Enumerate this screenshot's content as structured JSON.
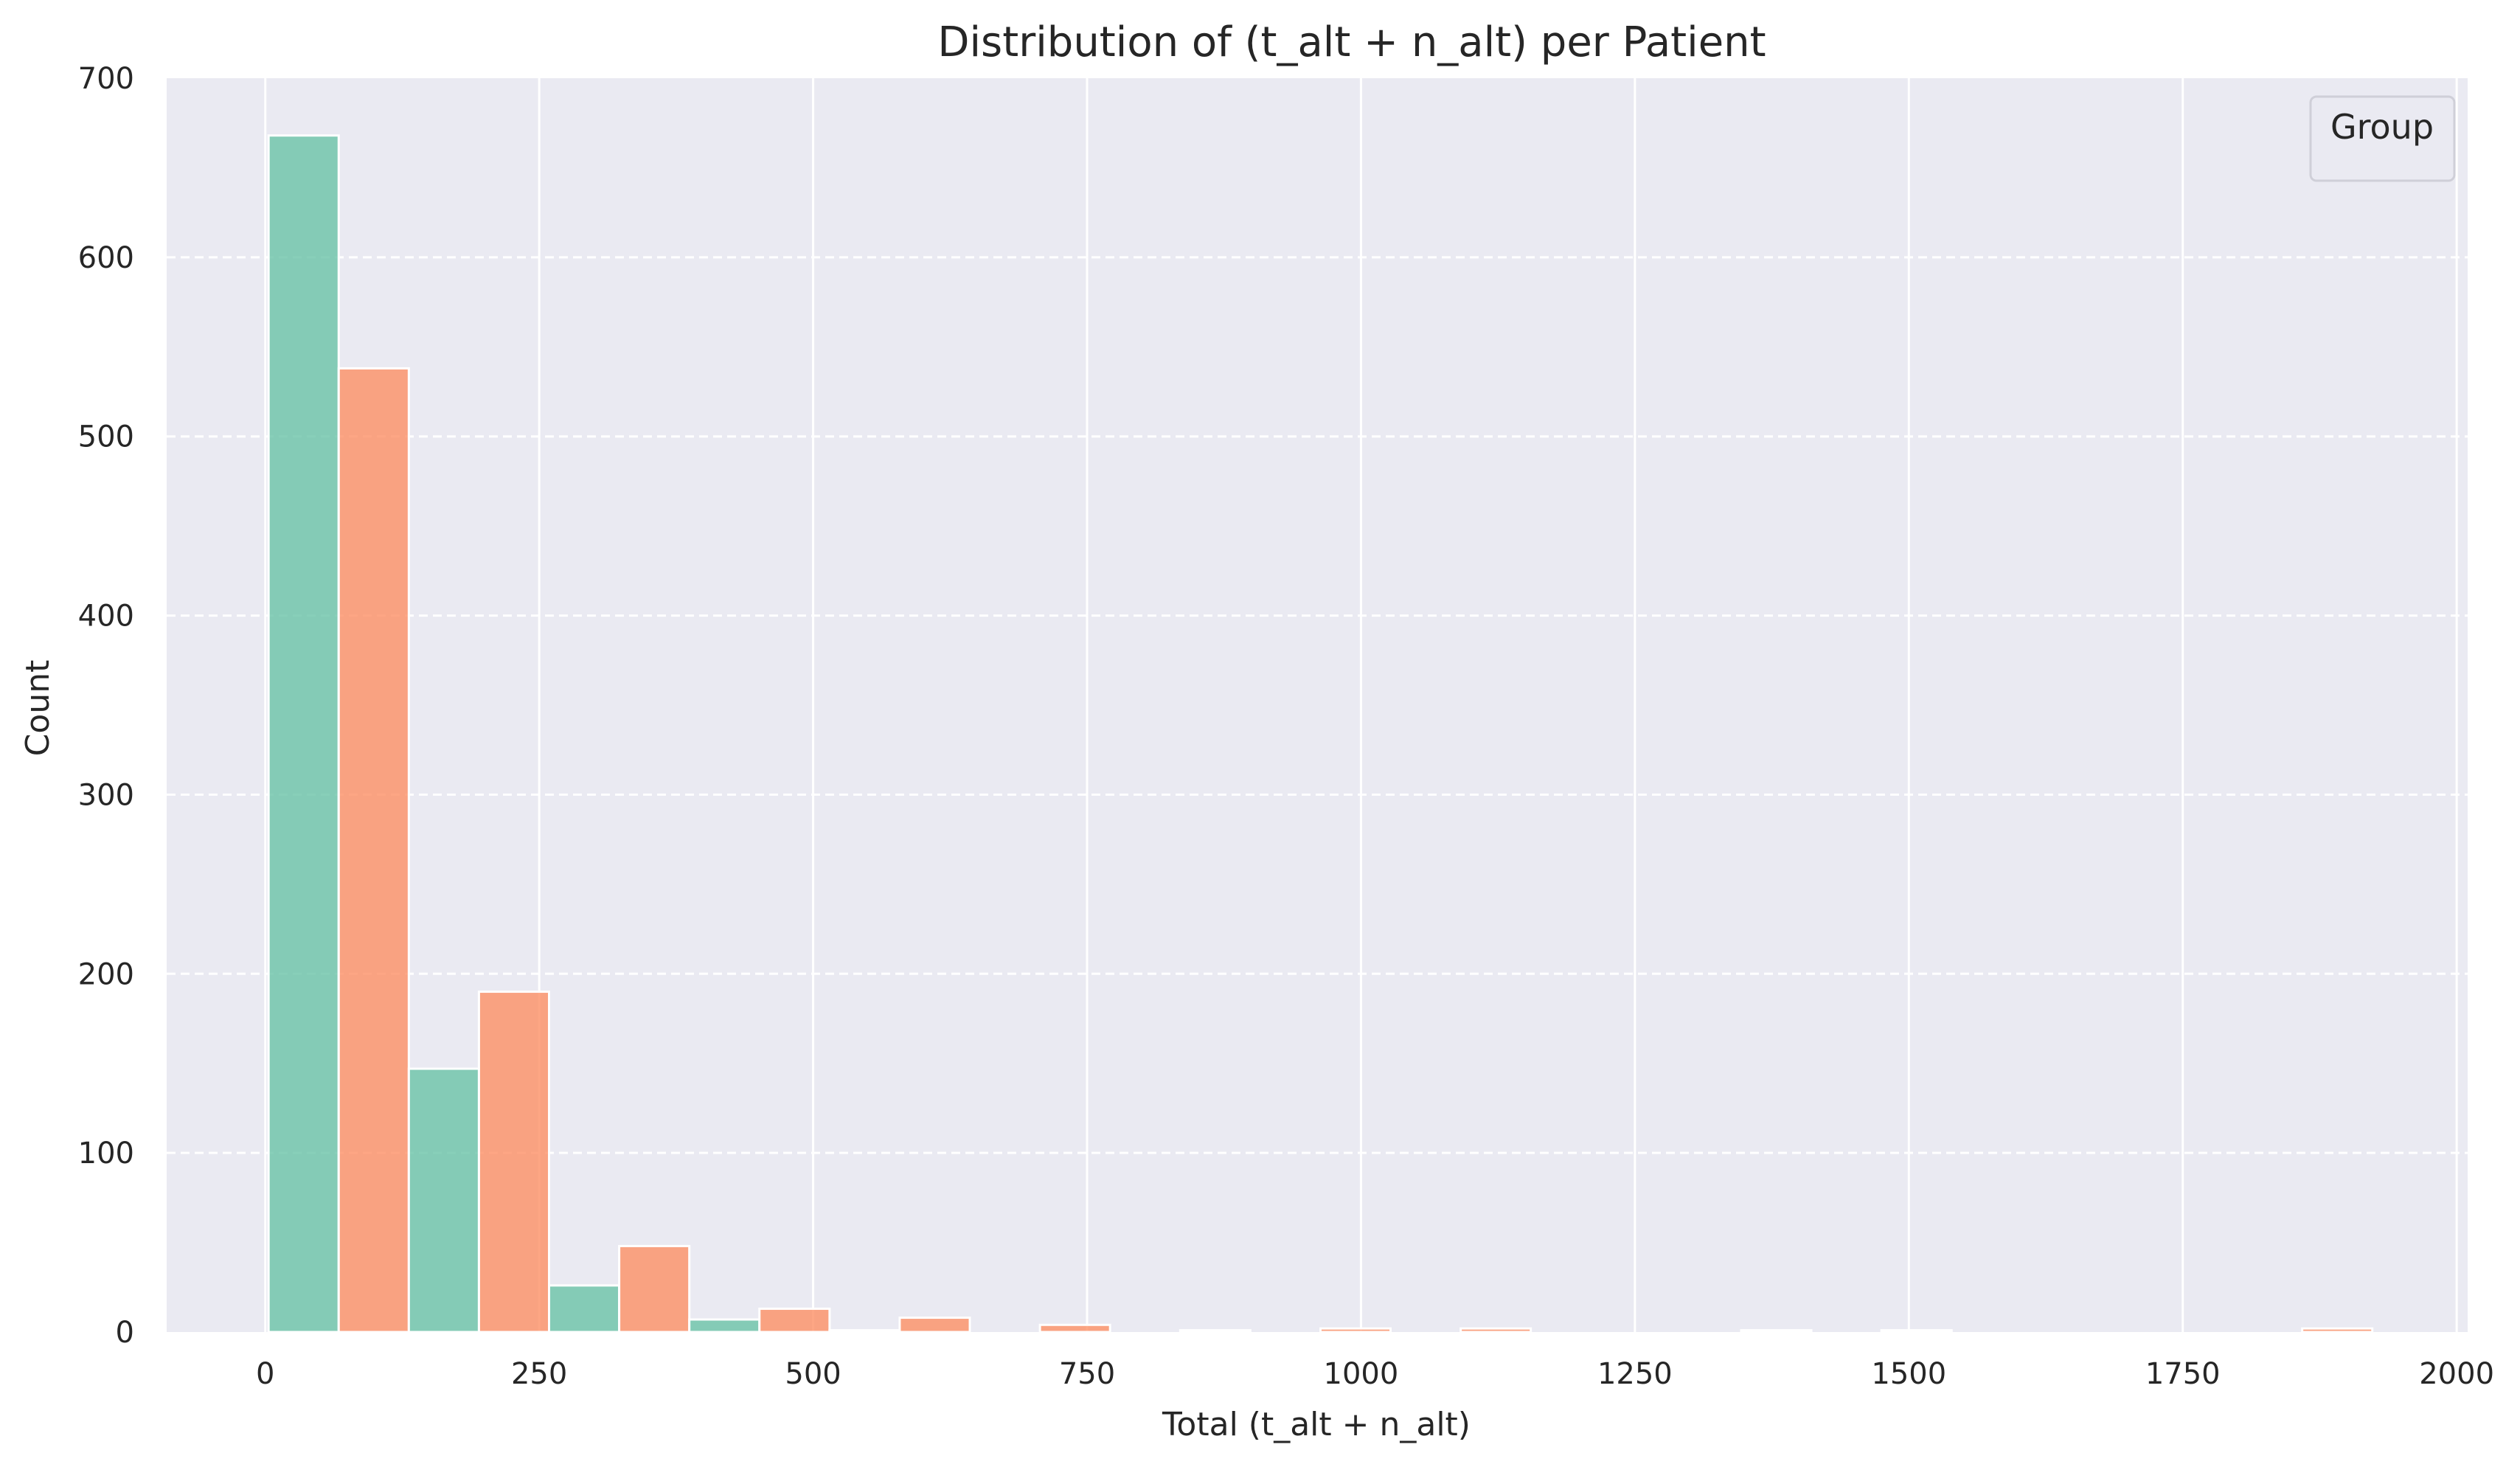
{
  "chart_data": {
    "type": "bar",
    "title": "Distribution of (t_alt + n_alt) per Patient",
    "xlabel": "Total (t_alt + n_alt)",
    "ylabel": "Count",
    "xlim": [
      -90,
      2010
    ],
    "ylim": [
      0,
      700
    ],
    "x_ticks": [
      0,
      250,
      500,
      750,
      1000,
      1250,
      1500,
      1750,
      2000
    ],
    "y_ticks": [
      0,
      100,
      200,
      300,
      400,
      500,
      600,
      700
    ],
    "grid": true,
    "legend": {
      "title": "Group",
      "placement": "top-right",
      "entries": []
    },
    "bin_width": 64,
    "bins": [
      {
        "x0": 3,
        "value": 668,
        "series": "a"
      },
      {
        "x0": 67,
        "value": 538,
        "series": "b"
      },
      {
        "x0": 131,
        "value": 147,
        "series": "a"
      },
      {
        "x0": 195,
        "value": 190,
        "series": "b"
      },
      {
        "x0": 259,
        "value": 26,
        "series": "a"
      },
      {
        "x0": 323,
        "value": 48,
        "series": "b"
      },
      {
        "x0": 387,
        "value": 7,
        "series": "a"
      },
      {
        "x0": 451,
        "value": 13,
        "series": "b"
      },
      {
        "x0": 515,
        "value": 1,
        "series": "a"
      },
      {
        "x0": 579,
        "value": 8,
        "series": "b"
      },
      {
        "x0": 707,
        "value": 4,
        "series": "b"
      },
      {
        "x0": 835,
        "value": 1,
        "series": "b"
      },
      {
        "x0": 963,
        "value": 2,
        "series": "b"
      },
      {
        "x0": 1091,
        "value": 2,
        "series": "b"
      },
      {
        "x0": 1347,
        "value": 1,
        "series": "b"
      },
      {
        "x0": 1475,
        "value": 1,
        "series": "b"
      },
      {
        "x0": 1859,
        "value": 2,
        "series": "b"
      }
    ],
    "colors": {
      "a": "#66c2a5",
      "b": "#fc8d62",
      "plot_background": "#eaeaf2",
      "grid": "#ffffff",
      "bar_edge": "#ffffff"
    }
  }
}
